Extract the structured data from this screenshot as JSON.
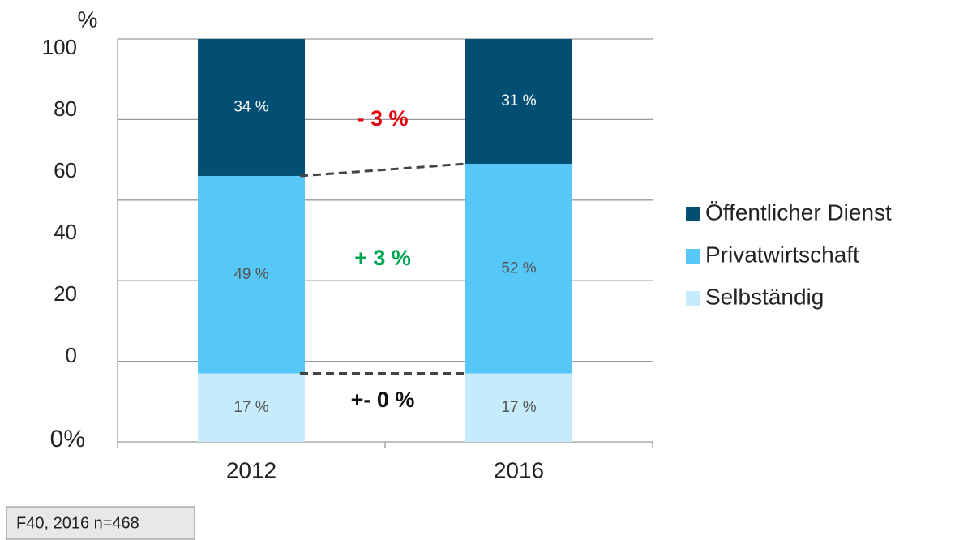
{
  "chart_data": {
    "type": "stacked_bar",
    "unit_label": "%",
    "y_labels": [
      "100",
      "80",
      "60",
      "40",
      "20",
      "0",
      "0%"
    ],
    "categories": [
      "2012",
      "2016"
    ],
    "series": [
      {
        "name": "Selbständig",
        "color": "#c6ecfb",
        "label_color": "#555555",
        "values": [
          17,
          17
        ],
        "value_labels": [
          "17 %",
          "17 %"
        ]
      },
      {
        "name": "Privatwirtschaft",
        "color": "#55c8f8",
        "label_color": "#555555",
        "values": [
          49,
          52
        ],
        "value_labels": [
          "49 %",
          "52 %"
        ]
      },
      {
        "name": "Öffentlicher Dienst",
        "color": "#034f73",
        "label_color": "#ffffff",
        "values": [
          34,
          31
        ],
        "value_labels": [
          "34 %",
          "31 %"
        ]
      }
    ],
    "ylim": [
      0,
      100
    ],
    "yticks": [
      20,
      40,
      60,
      80,
      100
    ],
    "grid": true,
    "annotations": [
      {
        "text": "- 3 %",
        "color": "#e3000f"
      },
      {
        "text": "+ 3 %",
        "color": "#00a651"
      },
      {
        "text": "+- 0 %",
        "color": "#111111"
      }
    ],
    "legend": "right",
    "footnote": "F40, 2016 n=468"
  }
}
